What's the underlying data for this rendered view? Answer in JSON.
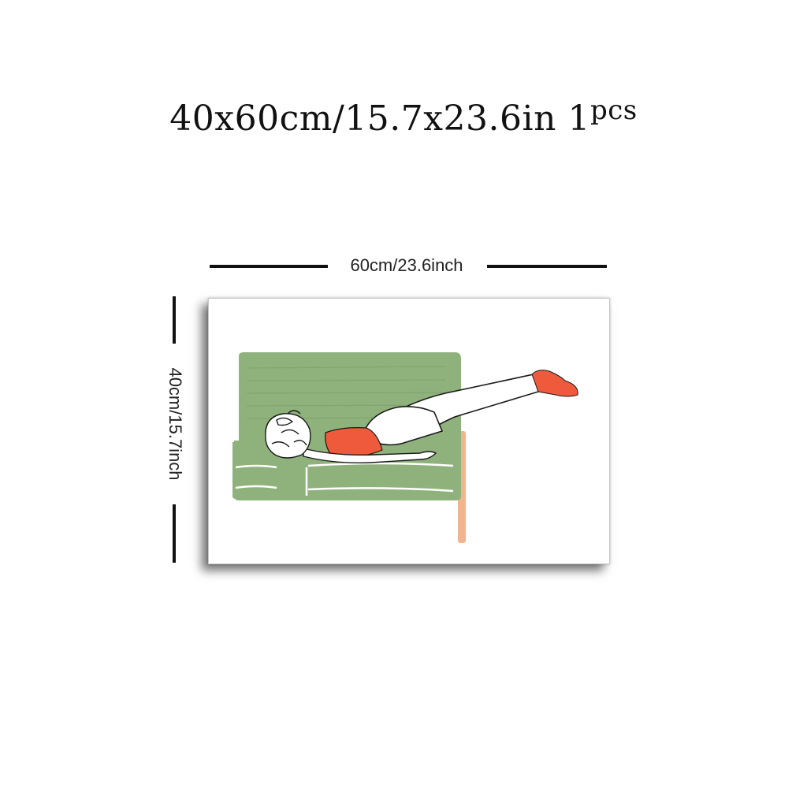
{
  "product": {
    "size_text": "40x60cm/15.7x23.6in",
    "quantity": "1",
    "quantity_unit": "pcs"
  },
  "dimensions": {
    "width_label": "60cm/23.6inch",
    "height_label": "40cm/15.7inch"
  },
  "artwork": {
    "subject": "woman lying on green sofa with leg raised",
    "colors": {
      "sofa": "#8fb27d",
      "sofa_line": "#ffffff",
      "top": "#ef5a3c",
      "socks": "#ef5a3c",
      "pants": "#ffffff",
      "outline": "#1a1a1a",
      "table_leg": "#f1b48f"
    }
  }
}
